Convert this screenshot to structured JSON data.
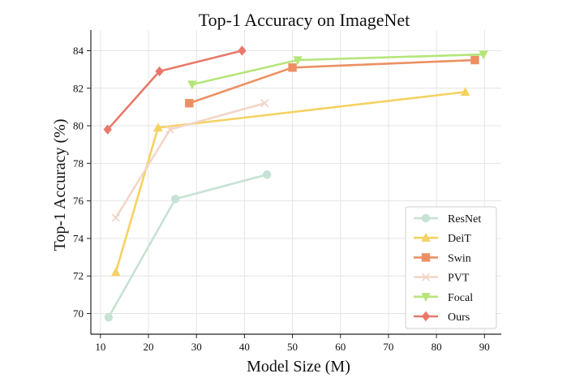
{
  "chart_data": {
    "type": "line",
    "title": "Top-1 Accuracy on ImageNet",
    "xlabel": "Model Size (M)",
    "ylabel": "Top-1 Accuracy (%)",
    "xlim": [
      8,
      93.5
    ],
    "ylim": [
      68.9,
      85.1
    ],
    "xticks": [
      10,
      20,
      30,
      40,
      50,
      60,
      70,
      80,
      90
    ],
    "yticks": [
      70,
      72,
      74,
      76,
      78,
      80,
      82,
      84
    ],
    "grid": true,
    "legend_position": "bottom-right",
    "series": [
      {
        "name": "ResNet",
        "color": "#c6e2d4",
        "marker": "circle",
        "points": [
          [
            11.7,
            69.8
          ],
          [
            25.6,
            76.1
          ],
          [
            44.7,
            77.4
          ]
        ]
      },
      {
        "name": "DeiT",
        "color": "#f5d261",
        "marker": "triangle-up",
        "points": [
          [
            13.2,
            72.2
          ],
          [
            22.0,
            79.9
          ],
          [
            86.0,
            81.8
          ]
        ]
      },
      {
        "name": "Swin",
        "color": "#ec9063",
        "marker": "square",
        "points": [
          [
            28.5,
            81.2
          ],
          [
            50.0,
            83.1
          ],
          [
            88.0,
            83.5
          ]
        ]
      },
      {
        "name": "PVT",
        "color": "#f2d6c8",
        "marker": "x",
        "points": [
          [
            13.2,
            75.1
          ],
          [
            24.5,
            79.8
          ],
          [
            44.2,
            81.2
          ]
        ]
      },
      {
        "name": "Focal",
        "color": "#b5e57a",
        "marker": "triangle-down",
        "points": [
          [
            29.1,
            82.2
          ],
          [
            51.1,
            83.5
          ],
          [
            89.8,
            83.8
          ]
        ]
      },
      {
        "name": "Ours",
        "color": "#e8796a",
        "marker": "diamond",
        "points": [
          [
            11.5,
            79.8
          ],
          [
            22.3,
            82.9
          ],
          [
            39.5,
            84.0
          ]
        ]
      }
    ]
  }
}
